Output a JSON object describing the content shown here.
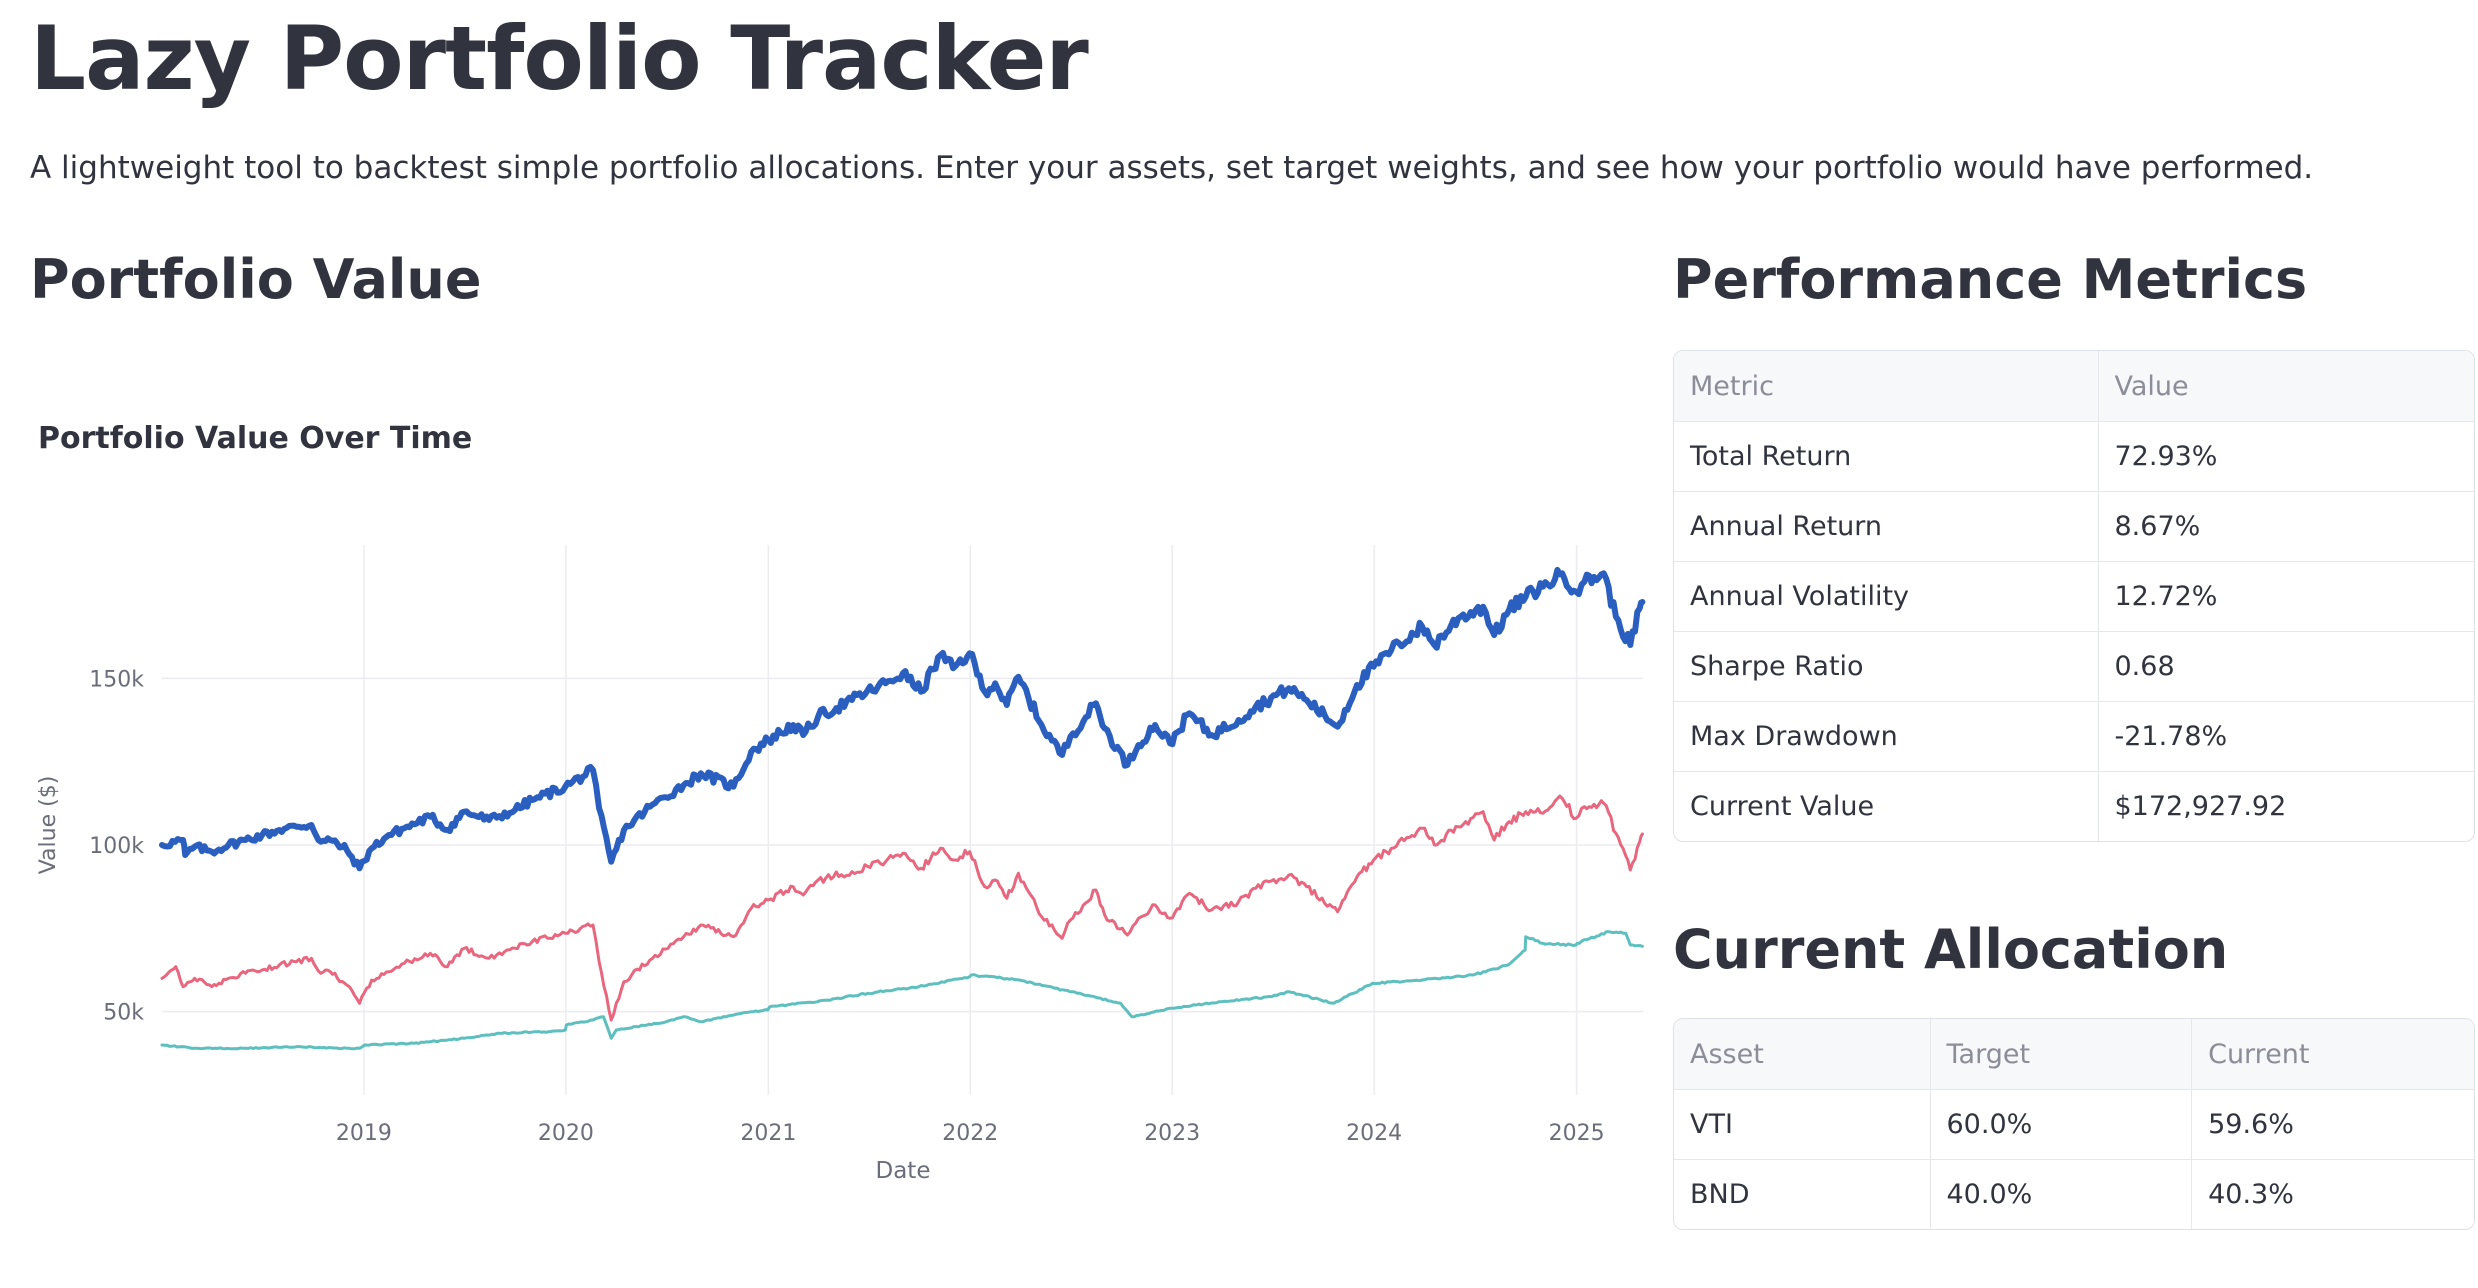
{
  "header": {
    "title": "Lazy Portfolio Tracker",
    "description": "A lightweight tool to backtest simple portfolio allocations. Enter your assets, set target weights, and see how your portfolio would have performed."
  },
  "portfolio_section": {
    "title": "Portfolio Value"
  },
  "chart_data": {
    "type": "line",
    "title": "Portfolio Value Over Time",
    "xlabel": "Date",
    "ylabel": "Value ($)",
    "x_ticks": [
      "2019",
      "2020",
      "2021",
      "2022",
      "2023",
      "2024",
      "2025"
    ],
    "y_ticks": [
      {
        "value": 50000,
        "label": "50k"
      },
      {
        "value": 100000,
        "label": "100k"
      },
      {
        "value": 150000,
        "label": "150k"
      }
    ],
    "xlim": [
      "2018-01-01",
      "2025-05-01"
    ],
    "ylim": [
      25000,
      190000
    ],
    "grid": true,
    "series": [
      {
        "color": "#2a5fc0",
        "points": [
          [
            "2018-01-01",
            100000
          ],
          [
            "2018-02-08",
            101500
          ],
          [
            "2018-02-12",
            97000
          ],
          [
            "2018-03-01",
            99500
          ],
          [
            "2018-04-01",
            98000
          ],
          [
            "2018-05-01",
            100000
          ],
          [
            "2018-06-01",
            101500
          ],
          [
            "2018-07-01",
            103000
          ],
          [
            "2018-08-01",
            104500
          ],
          [
            "2018-09-01",
            105500
          ],
          [
            "2018-09-28",
            106000
          ],
          [
            "2018-10-15",
            101000
          ],
          [
            "2018-11-01",
            101500
          ],
          [
            "2018-12-01",
            98500
          ],
          [
            "2018-12-24",
            93000
          ],
          [
            "2019-01-15",
            99000
          ],
          [
            "2019-02-15",
            103000
          ],
          [
            "2019-03-15",
            105000
          ],
          [
            "2019-05-01",
            108500
          ],
          [
            "2019-06-01",
            104500
          ],
          [
            "2019-07-01",
            110000
          ],
          [
            "2019-08-15",
            107500
          ],
          [
            "2019-10-01",
            110500
          ],
          [
            "2019-11-01",
            113500
          ],
          [
            "2019-12-31",
            117500
          ],
          [
            "2020-02-19",
            122500
          ],
          [
            "2020-03-01",
            111000
          ],
          [
            "2020-03-23",
            95000
          ],
          [
            "2020-04-15",
            104500
          ],
          [
            "2020-06-01",
            111500
          ],
          [
            "2020-08-01",
            118000
          ],
          [
            "2020-09-01",
            121500
          ],
          [
            "2020-10-30",
            117500
          ],
          [
            "2020-12-01",
            128000
          ],
          [
            "2021-01-01",
            131500
          ],
          [
            "2021-02-15",
            136000
          ],
          [
            "2021-03-05",
            133000
          ],
          [
            "2021-04-01",
            138500
          ],
          [
            "2021-06-01",
            143500
          ],
          [
            "2021-08-01",
            148500
          ],
          [
            "2021-09-01",
            151500
          ],
          [
            "2021-10-04",
            146000
          ],
          [
            "2021-11-08",
            157000
          ],
          [
            "2021-12-01",
            153000
          ],
          [
            "2021-12-31",
            157500
          ],
          [
            "2022-01-27",
            146000
          ],
          [
            "2022-02-15",
            148500
          ],
          [
            "2022-03-08",
            142000
          ],
          [
            "2022-03-29",
            150500
          ],
          [
            "2022-05-10",
            136000
          ],
          [
            "2022-06-16",
            127000
          ],
          [
            "2022-07-01",
            132500
          ],
          [
            "2022-08-16",
            142500
          ],
          [
            "2022-09-01",
            135000
          ],
          [
            "2022-10-12",
            124000
          ],
          [
            "2022-11-01",
            130000
          ],
          [
            "2022-12-01",
            136000
          ],
          [
            "2022-12-28",
            130500
          ],
          [
            "2023-02-01",
            139500
          ],
          [
            "2023-03-13",
            133000
          ],
          [
            "2023-05-01",
            137500
          ],
          [
            "2023-06-01",
            141500
          ],
          [
            "2023-07-31",
            147000
          ],
          [
            "2023-09-01",
            143500
          ],
          [
            "2023-10-27",
            135500
          ],
          [
            "2023-12-01",
            148000
          ],
          [
            "2023-12-31",
            153500
          ],
          [
            "2024-02-01",
            158500
          ],
          [
            "2024-03-28",
            165500
          ],
          [
            "2024-04-19",
            160000
          ],
          [
            "2024-06-01",
            168000
          ],
          [
            "2024-07-16",
            171500
          ],
          [
            "2024-08-05",
            163000
          ],
          [
            "2024-09-01",
            170500
          ],
          [
            "2024-10-01",
            174500
          ],
          [
            "2024-11-01",
            177500
          ],
          [
            "2024-12-06",
            181500
          ],
          [
            "2024-12-31",
            176000
          ],
          [
            "2025-01-15",
            179000
          ],
          [
            "2025-02-19",
            181500
          ],
          [
            "2025-03-13",
            168500
          ],
          [
            "2025-04-08",
            160000
          ],
          [
            "2025-04-25",
            171000
          ],
          [
            "2025-04-30",
            172900
          ]
        ]
      },
      {
        "color": "#e8677f",
        "points": [
          [
            "2018-01-01",
            60000
          ],
          [
            "2018-01-26",
            63500
          ],
          [
            "2018-02-08",
            57500
          ],
          [
            "2018-03-01",
            60000
          ],
          [
            "2018-04-01",
            57500
          ],
          [
            "2018-05-01",
            60000
          ],
          [
            "2018-06-01",
            61500
          ],
          [
            "2018-07-01",
            62500
          ],
          [
            "2018-08-01",
            64000
          ],
          [
            "2018-09-01",
            65000
          ],
          [
            "2018-09-28",
            66000
          ],
          [
            "2018-10-15",
            61500
          ],
          [
            "2018-11-01",
            62000
          ],
          [
            "2018-12-01",
            58000
          ],
          [
            "2018-12-24",
            52500
          ],
          [
            "2019-01-15",
            59500
          ],
          [
            "2019-02-15",
            62000
          ],
          [
            "2019-03-15",
            64500
          ],
          [
            "2019-05-01",
            67500
          ],
          [
            "2019-06-01",
            63500
          ],
          [
            "2019-07-01",
            69000
          ],
          [
            "2019-08-15",
            66000
          ],
          [
            "2019-10-01",
            69000
          ],
          [
            "2019-11-01",
            71000
          ],
          [
            "2019-12-31",
            73500
          ],
          [
            "2020-02-19",
            76000
          ],
          [
            "2020-03-01",
            65000
          ],
          [
            "2020-03-23",
            47500
          ],
          [
            "2020-04-15",
            59000
          ],
          [
            "2020-06-01",
            65500
          ],
          [
            "2020-08-01",
            72500
          ],
          [
            "2020-09-01",
            76000
          ],
          [
            "2020-10-30",
            72500
          ],
          [
            "2020-12-01",
            81000
          ],
          [
            "2021-01-01",
            83500
          ],
          [
            "2021-02-15",
            87500
          ],
          [
            "2021-03-05",
            85000
          ],
          [
            "2021-04-01",
            89500
          ],
          [
            "2021-06-01",
            92000
          ],
          [
            "2021-08-01",
            95000
          ],
          [
            "2021-09-01",
            97500
          ],
          [
            "2021-10-04",
            93000
          ],
          [
            "2021-11-08",
            99000
          ],
          [
            "2021-12-01",
            95500
          ],
          [
            "2021-12-31",
            98000
          ],
          [
            "2022-01-27",
            87500
          ],
          [
            "2022-02-15",
            89500
          ],
          [
            "2022-03-08",
            84000
          ],
          [
            "2022-03-29",
            91500
          ],
          [
            "2022-05-10",
            78500
          ],
          [
            "2022-06-16",
            72000
          ],
          [
            "2022-07-01",
            77500
          ],
          [
            "2022-08-16",
            86500
          ],
          [
            "2022-09-01",
            79000
          ],
          [
            "2022-10-12",
            73000
          ],
          [
            "2022-11-01",
            78000
          ],
          [
            "2022-12-01",
            82000
          ],
          [
            "2022-12-28",
            78000
          ],
          [
            "2023-02-01",
            85500
          ],
          [
            "2023-03-13",
            80500
          ],
          [
            "2023-05-01",
            83000
          ],
          [
            "2023-06-01",
            87000
          ],
          [
            "2023-07-31",
            91000
          ],
          [
            "2023-09-01",
            87500
          ],
          [
            "2023-10-27",
            80000
          ],
          [
            "2023-12-01",
            90500
          ],
          [
            "2023-12-31",
            95500
          ],
          [
            "2024-02-01",
            99000
          ],
          [
            "2024-03-28",
            105000
          ],
          [
            "2024-04-19",
            100000
          ],
          [
            "2024-06-01",
            105500
          ],
          [
            "2024-07-16",
            110000
          ],
          [
            "2024-08-05",
            101500
          ],
          [
            "2024-09-01",
            107000
          ],
          [
            "2024-10-01",
            110000
          ],
          [
            "2024-11-01",
            109500
          ],
          [
            "2024-12-06",
            114000
          ],
          [
            "2024-12-31",
            108000
          ],
          [
            "2025-01-15",
            111500
          ],
          [
            "2025-02-19",
            112500
          ],
          [
            "2025-03-13",
            103500
          ],
          [
            "2025-04-08",
            92500
          ],
          [
            "2025-04-25",
            101000
          ],
          [
            "2025-04-30",
            103300
          ]
        ]
      },
      {
        "color": "#5ebfbf",
        "points": [
          [
            "2018-01-01",
            40000
          ],
          [
            "2018-03-01",
            39000
          ],
          [
            "2018-06-01",
            39000
          ],
          [
            "2018-09-01",
            39500
          ],
          [
            "2018-12-01",
            39000
          ],
          [
            "2018-12-24",
            39000
          ],
          [
            "2019-01-02",
            40000
          ],
          [
            "2019-04-01",
            40500
          ],
          [
            "2019-07-01",
            42000
          ],
          [
            "2019-09-03",
            43500
          ],
          [
            "2019-12-01",
            44000
          ],
          [
            "2019-12-31",
            44500
          ],
          [
            "2020-01-02",
            46000
          ],
          [
            "2020-02-19",
            47500
          ],
          [
            "2020-03-09",
            48500
          ],
          [
            "2020-03-23",
            42000
          ],
          [
            "2020-04-01",
            44500
          ],
          [
            "2020-07-01",
            47000
          ],
          [
            "2020-08-01",
            48500
          ],
          [
            "2020-09-01",
            47000
          ],
          [
            "2020-12-01",
            50000
          ],
          [
            "2020-12-31",
            50500
          ],
          [
            "2021-01-04",
            51500
          ],
          [
            "2021-03-31",
            53000
          ],
          [
            "2021-06-30",
            55500
          ],
          [
            "2021-09-30",
            57500
          ],
          [
            "2021-12-31",
            60500
          ],
          [
            "2022-01-03",
            61000
          ],
          [
            "2022-03-31",
            59500
          ],
          [
            "2022-06-30",
            56000
          ],
          [
            "2022-09-30",
            52500
          ],
          [
            "2022-10-20",
            48500
          ],
          [
            "2022-12-30",
            51000
          ],
          [
            "2023-03-31",
            53000
          ],
          [
            "2023-06-30",
            54500
          ],
          [
            "2023-07-31",
            56000
          ],
          [
            "2023-10-20",
            52500
          ],
          [
            "2023-12-29",
            58500
          ],
          [
            "2024-03-28",
            59500
          ],
          [
            "2024-06-28",
            61000
          ],
          [
            "2024-08-30",
            64000
          ],
          [
            "2024-09-30",
            68500
          ],
          [
            "2024-10-01",
            72500
          ],
          [
            "2024-11-01",
            70500
          ],
          [
            "2024-12-31",
            70000
          ],
          [
            "2025-01-02",
            70500
          ],
          [
            "2025-02-28",
            74000
          ],
          [
            "2025-03-31",
            73500
          ],
          [
            "2025-04-08",
            70000
          ],
          [
            "2025-04-30",
            69600
          ]
        ]
      }
    ]
  },
  "metrics_section": {
    "title": "Performance Metrics",
    "columns": [
      "Metric",
      "Value"
    ],
    "rows": [
      [
        "Total Return",
        "72.93%"
      ],
      [
        "Annual Return",
        "8.67%"
      ],
      [
        "Annual Volatility",
        "12.72%"
      ],
      [
        "Sharpe Ratio",
        "0.68"
      ],
      [
        "Max Drawdown",
        "-21.78%"
      ],
      [
        "Current Value",
        "$172,927.92"
      ]
    ]
  },
  "allocation_section": {
    "title": "Current Allocation",
    "columns": [
      "Asset",
      "Target",
      "Current"
    ],
    "rows": [
      [
        "VTI",
        "60.0%",
        "59.6%"
      ],
      [
        "BND",
        "40.0%",
        "40.3%"
      ]
    ]
  }
}
